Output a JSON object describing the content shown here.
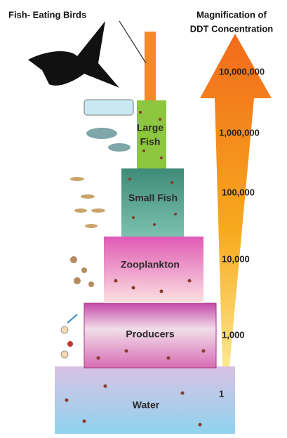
{
  "header": {
    "title": "Fish- Eating Birds",
    "scale_title": [
      "Magnification of",
      "DDT Concentration"
    ]
  },
  "levels": [
    {
      "label_lines": [
        "Large",
        "Fish"
      ]
    },
    {
      "label_lines": [
        "Small Fish"
      ]
    },
    {
      "label_lines": [
        "Zooplankton"
      ]
    },
    {
      "label_lines": [
        "Producers"
      ]
    },
    {
      "label_lines": [
        "Water"
      ]
    }
  ],
  "concentrations": [
    "10,000,000",
    "1,000,000",
    "100,000",
    "10,000",
    "1,000",
    "1"
  ]
}
